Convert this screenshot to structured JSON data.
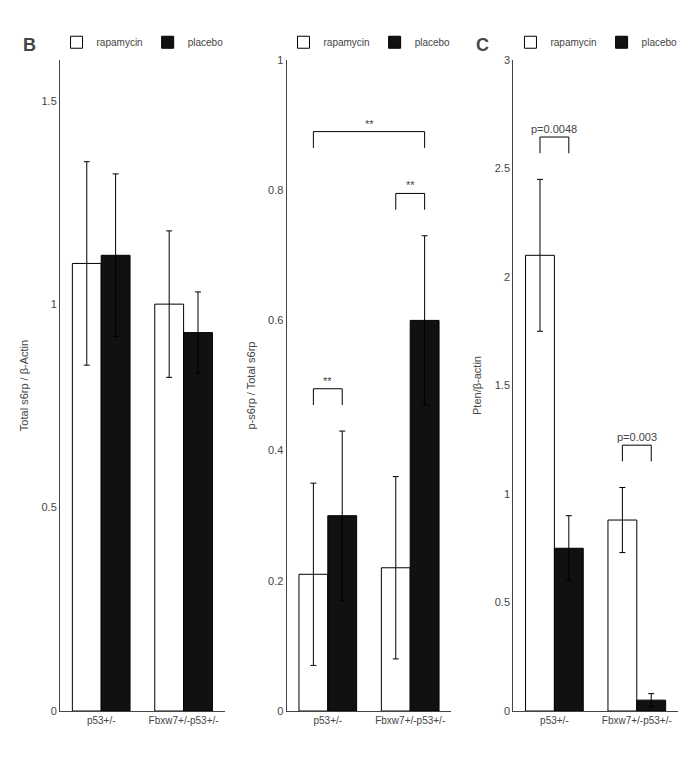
{
  "chart_data": [
    {
      "type": "bar",
      "title": "B",
      "ylabel": "Total s6rp / β-Actin",
      "categories": [
        "p53+/-",
        "Fbxw7+/-p53+/-"
      ],
      "series": [
        {
          "name": "rapamycin",
          "color": "#ffffff",
          "values": [
            1.1,
            1.0
          ],
          "errors": [
            0.25,
            0.18
          ]
        },
        {
          "name": "placebo",
          "color": "#111111",
          "values": [
            1.12,
            0.93
          ],
          "errors": [
            0.2,
            0.1
          ]
        }
      ],
      "ylim": [
        0,
        1.6
      ],
      "yticks": [
        0,
        0.5,
        1.0,
        1.5
      ],
      "grid": false,
      "legend": "top"
    },
    {
      "type": "bar",
      "ylabel": "p-s6rp / Total s6rp",
      "categories": [
        "p53+/-",
        "Fbxw7+/-p53+/-"
      ],
      "series": [
        {
          "name": "rapamycin",
          "color": "#ffffff",
          "values": [
            0.21,
            0.22
          ],
          "errors": [
            0.14,
            0.14
          ]
        },
        {
          "name": "placebo",
          "color": "#111111",
          "values": [
            0.3,
            0.6
          ],
          "errors": [
            0.13,
            0.13
          ]
        }
      ],
      "ylim": [
        0,
        1.0
      ],
      "yticks": [
        0,
        0.2,
        0.4,
        0.6,
        0.8,
        1.0
      ],
      "grid": false,
      "legend": "top",
      "annotations": [
        {
          "text": "**",
          "between": [
            [
              "p53+/-",
              "rapamycin"
            ],
            [
              "p53+/-",
              "placebo"
            ]
          ]
        },
        {
          "text": "**",
          "between": [
            [
              "p53+/-",
              "rapamycin"
            ],
            [
              "Fbxw7+/-p53+/-",
              "placebo"
            ]
          ]
        },
        {
          "text": "**",
          "between": [
            [
              "Fbxw7+/-p53+/-",
              "rapamycin"
            ],
            [
              "Fbxw7+/-p53+/-",
              "placebo"
            ]
          ]
        }
      ]
    },
    {
      "type": "bar",
      "title": "C",
      "ylabel": "Pten/β-actin",
      "categories": [
        "p53+/-",
        "Fbxw7+/-p53+/-"
      ],
      "series": [
        {
          "name": "rapamycin",
          "color": "#ffffff",
          "values": [
            2.1,
            0.88
          ],
          "errors": [
            0.35,
            0.15
          ]
        },
        {
          "name": "placebo",
          "color": "#111111",
          "values": [
            0.75,
            0.05
          ],
          "errors": [
            0.15,
            0.03
          ]
        }
      ],
      "ylim": [
        0,
        3.0
      ],
      "yticks": [
        0,
        0.5,
        1.0,
        1.5,
        2.0,
        2.5,
        3.0
      ],
      "grid": false,
      "legend": "top",
      "annotations": [
        {
          "text": "p=0.0048",
          "between": [
            [
              "p53+/-",
              "rapamycin"
            ],
            [
              "p53+/-",
              "placebo"
            ]
          ]
        },
        {
          "text": "p=0.003",
          "between": [
            [
              "Fbxw7+/-p53+/-",
              "rapamycin"
            ],
            [
              "Fbxw7+/-p53+/-",
              "placebo"
            ]
          ]
        }
      ]
    }
  ]
}
